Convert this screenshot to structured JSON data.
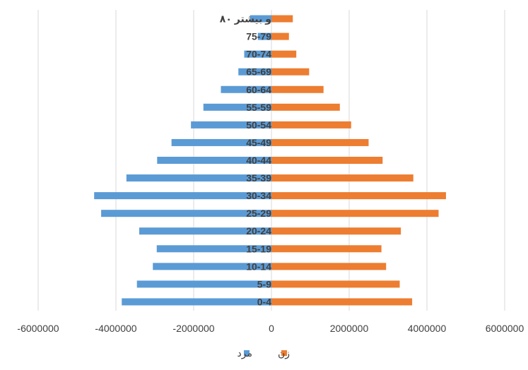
{
  "chart_data": {
    "type": "bar",
    "orientation": "horizontal",
    "chart_kind": "population pyramid",
    "categories": [
      "0-4",
      "5-9",
      "10-14",
      "15-19",
      "20-24",
      "25-29",
      "30-34",
      "35-39",
      "40-44",
      "45-49",
      "50-54",
      "55-59",
      "60-64",
      "65-69",
      "70-74",
      "75-79",
      "۸۰ و بیشتر"
    ],
    "series": [
      {
        "name": "مرد",
        "color": "#5b9bd5",
        "direction": "negative",
        "values": [
          3850000,
          3460000,
          3050000,
          2950000,
          3400000,
          4380000,
          4560000,
          3730000,
          2940000,
          2570000,
          2070000,
          1750000,
          1300000,
          850000,
          700000,
          350000,
          550000
        ]
      },
      {
        "name": "زن",
        "color": "#ed7d31",
        "direction": "positive",
        "values": [
          3620000,
          3300000,
          2950000,
          2830000,
          3330000,
          4300000,
          4490000,
          3650000,
          2860000,
          2500000,
          2050000,
          1760000,
          1340000,
          970000,
          640000,
          450000,
          550000
        ]
      }
    ],
    "xlim": [
      -6000000,
      6000000
    ],
    "xticks": [
      -6000000,
      -4000000,
      -2000000,
      0,
      2000000,
      4000000,
      6000000
    ],
    "xtick_labels": [
      "-6000000",
      "-4000000",
      "-2000000",
      "0",
      "2000000",
      "4000000",
      "6000000"
    ],
    "title": "",
    "xlabel": "",
    "ylabel": "",
    "grid": "vertical",
    "legend_position": "bottom",
    "legend": [
      "مرد",
      "زن"
    ]
  }
}
